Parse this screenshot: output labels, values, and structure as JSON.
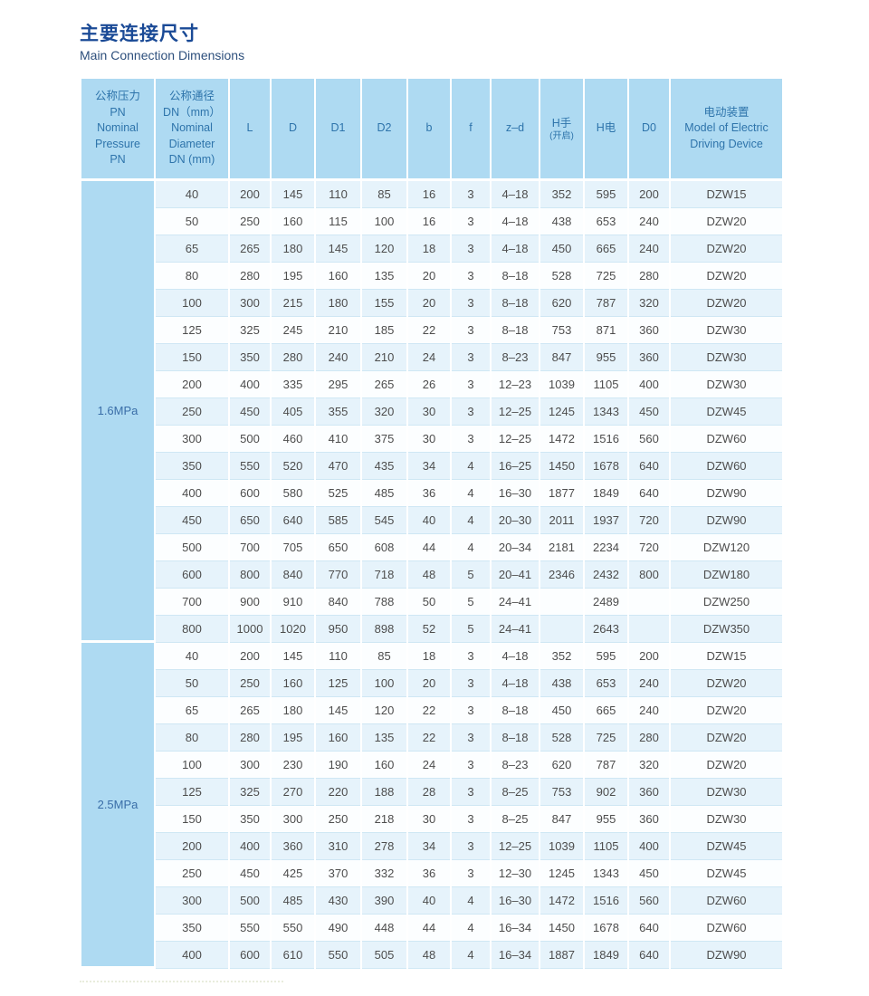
{
  "page": {
    "title": "主要连接尺寸",
    "subtitle": "Main Connection Dimensions"
  },
  "colors": {
    "title_blue": "#1a4a96",
    "subtitle_blue": "#2d4f7c",
    "header_bg": "#aedaf2",
    "header_text": "#2e74ab",
    "row_alt_bg": "#e6f3fb",
    "row_bg": "#fcfeff",
    "row_border": "#cfe7f4",
    "cell_text": "#4d4d4d"
  },
  "table": {
    "columns": [
      {
        "id": "pn",
        "lines": [
          "公称压力",
          "PN",
          "Nominal",
          "Pressure",
          "PN"
        ]
      },
      {
        "id": "dn",
        "lines": [
          "公称通径",
          "DN（mm）",
          "Nominal",
          "Diameter",
          "DN (mm)"
        ]
      },
      {
        "id": "L",
        "lines": [
          "L"
        ]
      },
      {
        "id": "D",
        "lines": [
          "D"
        ]
      },
      {
        "id": "D1",
        "lines": [
          "D1"
        ]
      },
      {
        "id": "D2",
        "lines": [
          "D2"
        ]
      },
      {
        "id": "b",
        "lines": [
          "b"
        ]
      },
      {
        "id": "f",
        "lines": [
          "f"
        ]
      },
      {
        "id": "z_d",
        "lines": [
          "z–d"
        ]
      },
      {
        "id": "h_hand",
        "lines": [
          "H手",
          "(开启)"
        ],
        "small_line": 1
      },
      {
        "id": "h_elec",
        "lines": [
          "H电"
        ]
      },
      {
        "id": "D0",
        "lines": [
          "D0"
        ]
      },
      {
        "id": "model",
        "lines": [
          "电动装置",
          "Model of Electric",
          "Driving Device"
        ]
      }
    ],
    "sections": [
      {
        "pressure": "1.6MPa",
        "rows": [
          [
            "40",
            "200",
            "145",
            "110",
            "85",
            "16",
            "3",
            "4–18",
            "352",
            "595",
            "200",
            "DZW15"
          ],
          [
            "50",
            "250",
            "160",
            "115",
            "100",
            "16",
            "3",
            "4–18",
            "438",
            "653",
            "240",
            "DZW20"
          ],
          [
            "65",
            "265",
            "180",
            "145",
            "120",
            "18",
            "3",
            "4–18",
            "450",
            "665",
            "240",
            "DZW20"
          ],
          [
            "80",
            "280",
            "195",
            "160",
            "135",
            "20",
            "3",
            "8–18",
            "528",
            "725",
            "280",
            "DZW20"
          ],
          [
            "100",
            "300",
            "215",
            "180",
            "155",
            "20",
            "3",
            "8–18",
            "620",
            "787",
            "320",
            "DZW20"
          ],
          [
            "125",
            "325",
            "245",
            "210",
            "185",
            "22",
            "3",
            "8–18",
            "753",
            "871",
            "360",
            "DZW30"
          ],
          [
            "150",
            "350",
            "280",
            "240",
            "210",
            "24",
            "3",
            "8–23",
            "847",
            "955",
            "360",
            "DZW30"
          ],
          [
            "200",
            "400",
            "335",
            "295",
            "265",
            "26",
            "3",
            "12–23",
            "1039",
            "1105",
            "400",
            "DZW30"
          ],
          [
            "250",
            "450",
            "405",
            "355",
            "320",
            "30",
            "3",
            "12–25",
            "1245",
            "1343",
            "450",
            "DZW45"
          ],
          [
            "300",
            "500",
            "460",
            "410",
            "375",
            "30",
            "3",
            "12–25",
            "1472",
            "1516",
            "560",
            "DZW60"
          ],
          [
            "350",
            "550",
            "520",
            "470",
            "435",
            "34",
            "4",
            "16–25",
            "1450",
            "1678",
            "640",
            "DZW60"
          ],
          [
            "400",
            "600",
            "580",
            "525",
            "485",
            "36",
            "4",
            "16–30",
            "1877",
            "1849",
            "640",
            "DZW90"
          ],
          [
            "450",
            "650",
            "640",
            "585",
            "545",
            "40",
            "4",
            "20–30",
            "2011",
            "1937",
            "720",
            "DZW90"
          ],
          [
            "500",
            "700",
            "705",
            "650",
            "608",
            "44",
            "4",
            "20–34",
            "2181",
            "2234",
            "720",
            "DZW120"
          ],
          [
            "600",
            "800",
            "840",
            "770",
            "718",
            "48",
            "5",
            "20–41",
            "2346",
            "2432",
            "800",
            "DZW180"
          ],
          [
            "700",
            "900",
            "910",
            "840",
            "788",
            "50",
            "5",
            "24–41",
            "",
            "2489",
            "",
            "DZW250"
          ],
          [
            "800",
            "1000",
            "1020",
            "950",
            "898",
            "52",
            "5",
            "24–41",
            "",
            "2643",
            "",
            "DZW350"
          ]
        ]
      },
      {
        "pressure": "2.5MPa",
        "rows": [
          [
            "40",
            "200",
            "145",
            "110",
            "85",
            "18",
            "3",
            "4–18",
            "352",
            "595",
            "200",
            "DZW15"
          ],
          [
            "50",
            "250",
            "160",
            "125",
            "100",
            "20",
            "3",
            "4–18",
            "438",
            "653",
            "240",
            "DZW20"
          ],
          [
            "65",
            "265",
            "180",
            "145",
            "120",
            "22",
            "3",
            "8–18",
            "450",
            "665",
            "240",
            "DZW20"
          ],
          [
            "80",
            "280",
            "195",
            "160",
            "135",
            "22",
            "3",
            "8–18",
            "528",
            "725",
            "280",
            "DZW20"
          ],
          [
            "100",
            "300",
            "230",
            "190",
            "160",
            "24",
            "3",
            "8–23",
            "620",
            "787",
            "320",
            "DZW20"
          ],
          [
            "125",
            "325",
            "270",
            "220",
            "188",
            "28",
            "3",
            "8–25",
            "753",
            "902",
            "360",
            "DZW30"
          ],
          [
            "150",
            "350",
            "300",
            "250",
            "218",
            "30",
            "3",
            "8–25",
            "847",
            "955",
            "360",
            "DZW30"
          ],
          [
            "200",
            "400",
            "360",
            "310",
            "278",
            "34",
            "3",
            "12–25",
            "1039",
            "1105",
            "400",
            "DZW45"
          ],
          [
            "250",
            "450",
            "425",
            "370",
            "332",
            "36",
            "3",
            "12–30",
            "1245",
            "1343",
            "450",
            "DZW45"
          ],
          [
            "300",
            "500",
            "485",
            "430",
            "390",
            "40",
            "4",
            "16–30",
            "1472",
            "1516",
            "560",
            "DZW60"
          ],
          [
            "350",
            "550",
            "550",
            "490",
            "448",
            "44",
            "4",
            "16–34",
            "1450",
            "1678",
            "640",
            "DZW60"
          ],
          [
            "400",
            "600",
            "610",
            "550",
            "505",
            "48",
            "4",
            "16–34",
            "1887",
            "1849",
            "640",
            "DZW90"
          ]
        ]
      }
    ]
  }
}
